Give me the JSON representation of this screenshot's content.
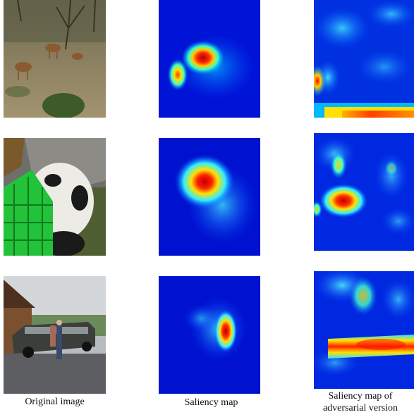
{
  "figure": {
    "captions": {
      "original": "Original image",
      "saliency": "Saliency map",
      "adversarial_line1": "Saliency map of",
      "adversarial_line2": "adversarial version"
    },
    "rows": [
      {
        "photo": "deer-in-savanna",
        "saliency": "saliency-deer",
        "adversarial": "adversarial-saliency-deer"
      },
      {
        "photo": "panda-with-crate",
        "saliency": "saliency-panda",
        "adversarial": "adversarial-saliency-panda"
      },
      {
        "photo": "limousine-with-people",
        "saliency": "saliency-limousine",
        "adversarial": "adversarial-saliency-limousine"
      }
    ],
    "colormap": [
      "#00007f",
      "#0000ff",
      "#00ffff",
      "#ffff00",
      "#ff0000",
      "#7f0000"
    ]
  }
}
